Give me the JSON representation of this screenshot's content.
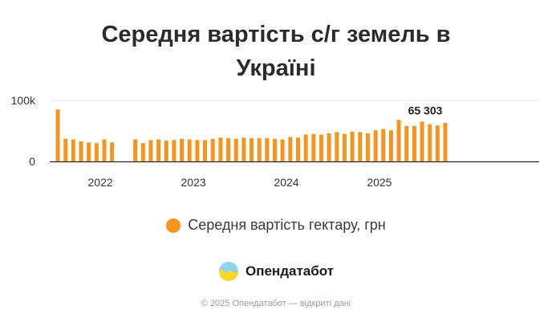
{
  "title_line1": "Середня вартість с/г земель в",
  "title_line2": "Україні",
  "legend_label": "Середня вартість гектару, грн",
  "brand_name": "Опендатабот",
  "footer": "© 2025 Опендатабот — відкриті дані",
  "colors": {
    "bar": "#F7941D",
    "grid": "#e6e6e6",
    "axis": "#222222"
  },
  "chart_data": {
    "type": "bar",
    "y_tick_labels": [
      "0",
      "100k"
    ],
    "ylim": [
      0,
      100000
    ],
    "x_tick_labels": [
      "2022",
      "2023",
      "2024",
      "2025"
    ],
    "highlight_label": "65 303",
    "months": [
      "2022-01",
      "2022-02",
      "2022-03",
      "2022-04",
      "2022-05",
      "2022-06",
      "2022-07",
      "2022-08",
      "2022-09",
      "2022-10",
      "2022-11",
      "2022-12",
      "2023-01",
      "2023-02",
      "2023-03",
      "2023-04",
      "2023-05",
      "2023-06",
      "2023-07",
      "2023-08",
      "2023-09",
      "2023-10",
      "2023-11",
      "2023-12",
      "2024-01",
      "2024-02",
      "2024-03",
      "2024-04",
      "2024-05",
      "2024-06",
      "2024-07",
      "2024-08",
      "2024-09",
      "2024-10",
      "2024-11",
      "2024-12",
      "2025-01",
      "2025-02",
      "2025-03",
      "2025-04",
      "2025-05",
      "2025-06",
      "2025-07",
      "2025-08",
      "2025-09",
      "2025-10",
      "2025-11",
      "2025-12",
      "2026-01",
      "2026-02",
      "2026-03",
      "2026-04",
      "2026-05",
      "2026-06",
      "2026-07"
    ],
    "values": [
      85000,
      37000,
      36000,
      33000,
      31000,
      30000,
      36000,
      31000,
      null,
      null,
      36000,
      30000,
      35000,
      36000,
      34000,
      35000,
      37000,
      36000,
      35000,
      35000,
      37000,
      39000,
      38000,
      37000,
      39000,
      38000,
      38000,
      38000,
      37000,
      36000,
      40000,
      39000,
      44000,
      45000,
      44000,
      46000,
      48000,
      45000,
      49000,
      48000,
      46000,
      51000,
      53000,
      51000,
      68000,
      58000,
      58000,
      65303,
      61000,
      59000,
      63000,
      null,
      null,
      null,
      null
    ]
  }
}
